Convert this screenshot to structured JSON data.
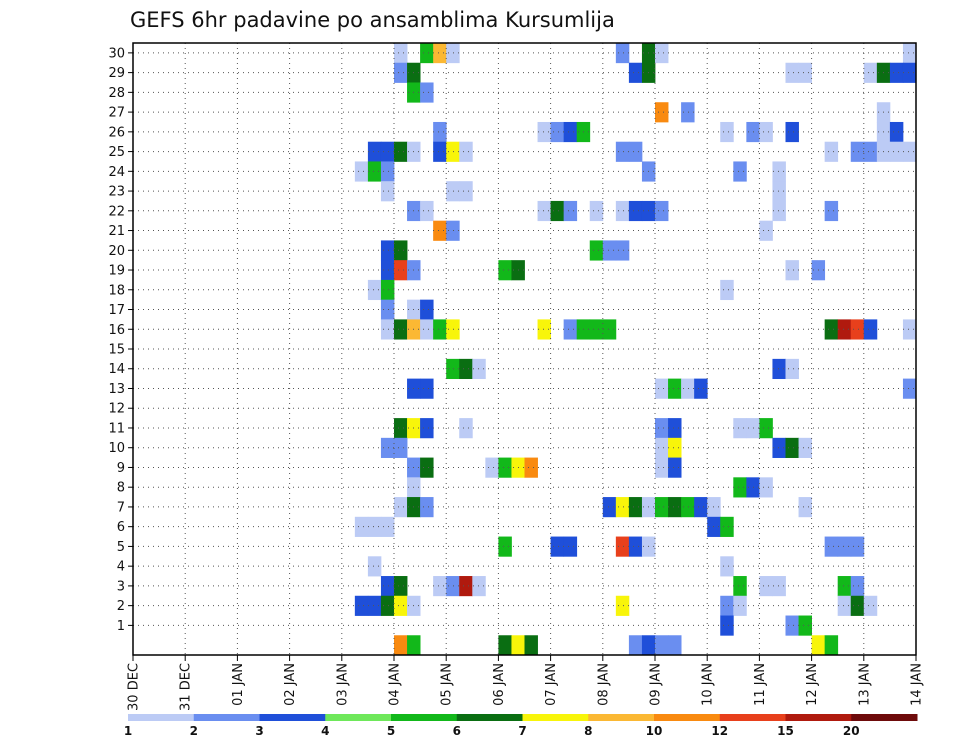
{
  "chart_data": {
    "type": "heatmap",
    "title": "GEFS 6hr padavine po ansamblima Kursumlija",
    "xlabel": "",
    "ylabel": "",
    "x_ticks": [
      "30 DEC",
      "31 DEC",
      "01 JAN",
      "02 JAN",
      "03 JAN",
      "04 JAN",
      "05 JAN",
      "06 JAN",
      "07 JAN",
      "08 JAN",
      "09 JAN",
      "10 JAN",
      "11 JAN",
      "12 JAN",
      "13 JAN",
      "14 JAN"
    ],
    "x_unit": "6h steps from 30 DEC 00Z",
    "xlim": [
      0,
      60
    ],
    "y_ticks": [
      1,
      2,
      3,
      4,
      5,
      6,
      7,
      8,
      9,
      10,
      11,
      12,
      13,
      14,
      15,
      16,
      17,
      18,
      19,
      20,
      21,
      22,
      23,
      24,
      25,
      26,
      27,
      28,
      29,
      30
    ],
    "ylim": [
      0,
      30
    ],
    "grid": true,
    "colorbar": {
      "labels": [
        "1",
        "2",
        "3",
        "4",
        "5",
        "6",
        "7",
        "8",
        "10",
        "12",
        "15",
        "20"
      ],
      "colors": [
        "#bccbf5",
        "#6a8ef0",
        "#1f4fd9",
        "#6ee85a",
        "#12b81a",
        "#0a6e12",
        "#f8f50a",
        "#fbb833",
        "#f98a10",
        "#e8401c",
        "#b01a0e",
        "#6e0b0b"
      ]
    },
    "cells_note": "each cell: [time step index (6h), member row 0-30, color class 0-11]",
    "cells": [
      [
        20,
        30,
        0
      ],
      [
        22,
        30,
        4
      ],
      [
        23,
        30,
        7
      ],
      [
        24,
        30,
        0
      ],
      [
        37,
        30,
        1
      ],
      [
        39,
        30,
        5
      ],
      [
        40,
        30,
        0
      ],
      [
        59,
        30,
        0
      ],
      [
        20,
        29,
        1
      ],
      [
        21,
        29,
        5
      ],
      [
        38,
        29,
        2
      ],
      [
        39,
        29,
        5
      ],
      [
        50,
        29,
        0
      ],
      [
        51,
        29,
        0
      ],
      [
        56,
        29,
        0
      ],
      [
        57,
        29,
        5
      ],
      [
        58,
        29,
        2
      ],
      [
        59,
        29,
        2
      ],
      [
        21,
        28,
        4
      ],
      [
        22,
        28,
        1
      ],
      [
        40,
        27,
        8
      ],
      [
        42,
        27,
        1
      ],
      [
        57,
        27,
        0
      ],
      [
        23,
        26,
        1
      ],
      [
        31,
        26,
        0
      ],
      [
        32,
        26,
        1
      ],
      [
        33,
        26,
        2
      ],
      [
        34,
        26,
        4
      ],
      [
        45,
        26,
        0
      ],
      [
        47,
        26,
        1
      ],
      [
        48,
        26,
        0
      ],
      [
        50,
        26,
        2
      ],
      [
        57,
        26,
        0
      ],
      [
        58,
        26,
        2
      ],
      [
        18,
        25,
        2
      ],
      [
        19,
        25,
        2
      ],
      [
        20,
        25,
        5
      ],
      [
        21,
        25,
        0
      ],
      [
        23,
        25,
        2
      ],
      [
        24,
        25,
        6
      ],
      [
        25,
        25,
        0
      ],
      [
        37,
        25,
        1
      ],
      [
        38,
        25,
        1
      ],
      [
        53,
        25,
        0
      ],
      [
        55,
        25,
        1
      ],
      [
        56,
        25,
        1
      ],
      [
        57,
        25,
        0
      ],
      [
        58,
        25,
        0
      ],
      [
        59,
        25,
        0
      ],
      [
        17,
        24,
        0
      ],
      [
        18,
        24,
        4
      ],
      [
        19,
        24,
        1
      ],
      [
        39,
        24,
        1
      ],
      [
        46,
        24,
        1
      ],
      [
        49,
        24,
        0
      ],
      [
        19,
        23,
        0
      ],
      [
        24,
        23,
        0
      ],
      [
        25,
        23,
        0
      ],
      [
        49,
        23,
        0
      ],
      [
        21,
        22,
        1
      ],
      [
        22,
        22,
        0
      ],
      [
        31,
        22,
        0
      ],
      [
        32,
        22,
        5
      ],
      [
        33,
        22,
        1
      ],
      [
        35,
        22,
        0
      ],
      [
        37,
        22,
        0
      ],
      [
        38,
        22,
        2
      ],
      [
        39,
        22,
        2
      ],
      [
        40,
        22,
        1
      ],
      [
        49,
        22,
        0
      ],
      [
        53,
        22,
        1
      ],
      [
        23,
        21,
        8
      ],
      [
        24,
        21,
        1
      ],
      [
        48,
        21,
        0
      ],
      [
        19,
        20,
        2
      ],
      [
        20,
        20,
        5
      ],
      [
        35,
        20,
        4
      ],
      [
        36,
        20,
        1
      ],
      [
        37,
        20,
        1
      ],
      [
        19,
        19,
        2
      ],
      [
        20,
        19,
        9
      ],
      [
        21,
        19,
        1
      ],
      [
        28,
        19,
        4
      ],
      [
        29,
        19,
        5
      ],
      [
        50,
        19,
        0
      ],
      [
        52,
        19,
        1
      ],
      [
        18,
        18,
        0
      ],
      [
        19,
        18,
        4
      ],
      [
        45,
        18,
        0
      ],
      [
        19,
        17,
        1
      ],
      [
        21,
        17,
        0
      ],
      [
        22,
        17,
        2
      ],
      [
        19,
        16,
        0
      ],
      [
        20,
        16,
        5
      ],
      [
        21,
        16,
        7
      ],
      [
        22,
        16,
        0
      ],
      [
        23,
        16,
        4
      ],
      [
        24,
        16,
        6
      ],
      [
        31,
        16,
        6
      ],
      [
        33,
        16,
        1
      ],
      [
        34,
        16,
        4
      ],
      [
        35,
        16,
        4
      ],
      [
        36,
        16,
        4
      ],
      [
        53,
        16,
        5
      ],
      [
        54,
        16,
        10
      ],
      [
        55,
        16,
        9
      ],
      [
        56,
        16,
        2
      ],
      [
        59,
        16,
        0
      ],
      [
        24,
        14,
        4
      ],
      [
        25,
        14,
        5
      ],
      [
        26,
        14,
        0
      ],
      [
        49,
        14,
        2
      ],
      [
        50,
        14,
        0
      ],
      [
        21,
        13,
        2
      ],
      [
        22,
        13,
        2
      ],
      [
        40,
        13,
        0
      ],
      [
        41,
        13,
        4
      ],
      [
        42,
        13,
        0
      ],
      [
        43,
        13,
        2
      ],
      [
        59,
        13,
        1
      ],
      [
        20,
        11,
        5
      ],
      [
        21,
        11,
        6
      ],
      [
        22,
        11,
        2
      ],
      [
        25,
        11,
        0
      ],
      [
        40,
        11,
        1
      ],
      [
        41,
        11,
        2
      ],
      [
        46,
        11,
        0
      ],
      [
        47,
        11,
        0
      ],
      [
        48,
        11,
        4
      ],
      [
        19,
        10,
        1
      ],
      [
        20,
        10,
        1
      ],
      [
        40,
        10,
        0
      ],
      [
        41,
        10,
        6
      ],
      [
        49,
        10,
        2
      ],
      [
        50,
        10,
        5
      ],
      [
        51,
        10,
        0
      ],
      [
        21,
        9,
        1
      ],
      [
        22,
        9,
        5
      ],
      [
        27,
        9,
        0
      ],
      [
        28,
        9,
        4
      ],
      [
        29,
        9,
        6
      ],
      [
        30,
        9,
        8
      ],
      [
        40,
        9,
        0
      ],
      [
        41,
        9,
        2
      ],
      [
        21,
        8,
        0
      ],
      [
        46,
        8,
        4
      ],
      [
        47,
        8,
        2
      ],
      [
        48,
        8,
        0
      ],
      [
        20,
        7,
        0
      ],
      [
        21,
        7,
        5
      ],
      [
        22,
        7,
        1
      ],
      [
        36,
        7,
        2
      ],
      [
        37,
        7,
        6
      ],
      [
        38,
        7,
        5
      ],
      [
        39,
        7,
        0
      ],
      [
        40,
        7,
        4
      ],
      [
        41,
        7,
        5
      ],
      [
        42,
        7,
        4
      ],
      [
        43,
        7,
        2
      ],
      [
        44,
        7,
        0
      ],
      [
        51,
        7,
        0
      ],
      [
        17,
        6,
        0
      ],
      [
        18,
        6,
        0
      ],
      [
        19,
        6,
        0
      ],
      [
        44,
        6,
        2
      ],
      [
        45,
        6,
        4
      ],
      [
        28,
        5,
        4
      ],
      [
        32,
        5,
        2
      ],
      [
        33,
        5,
        2
      ],
      [
        37,
        5,
        9
      ],
      [
        38,
        5,
        2
      ],
      [
        39,
        5,
        0
      ],
      [
        53,
        5,
        1
      ],
      [
        54,
        5,
        1
      ],
      [
        55,
        5,
        1
      ],
      [
        18,
        4,
        0
      ],
      [
        45,
        4,
        0
      ],
      [
        19,
        3,
        2
      ],
      [
        20,
        3,
        5
      ],
      [
        23,
        3,
        0
      ],
      [
        24,
        3,
        1
      ],
      [
        25,
        3,
        10
      ],
      [
        26,
        3,
        0
      ],
      [
        46,
        3,
        4
      ],
      [
        48,
        3,
        0
      ],
      [
        49,
        3,
        0
      ],
      [
        54,
        3,
        4
      ],
      [
        55,
        3,
        1
      ],
      [
        17,
        2,
        2
      ],
      [
        18,
        2,
        2
      ],
      [
        19,
        2,
        5
      ],
      [
        20,
        2,
        6
      ],
      [
        21,
        2,
        0
      ],
      [
        37,
        2,
        6
      ],
      [
        45,
        2,
        1
      ],
      [
        46,
        2,
        0
      ],
      [
        54,
        2,
        0
      ],
      [
        55,
        2,
        5
      ],
      [
        56,
        2,
        0
      ],
      [
        45,
        1,
        2
      ],
      [
        50,
        1,
        1
      ],
      [
        51,
        1,
        4
      ],
      [
        20,
        0,
        8
      ],
      [
        21,
        0,
        4
      ],
      [
        28,
        0,
        5
      ],
      [
        29,
        0,
        6
      ],
      [
        30,
        0,
        5
      ],
      [
        38,
        0,
        1
      ],
      [
        39,
        0,
        2
      ],
      [
        40,
        0,
        1
      ],
      [
        41,
        0,
        1
      ],
      [
        52,
        0,
        6
      ],
      [
        53,
        0,
        4
      ]
    ]
  }
}
